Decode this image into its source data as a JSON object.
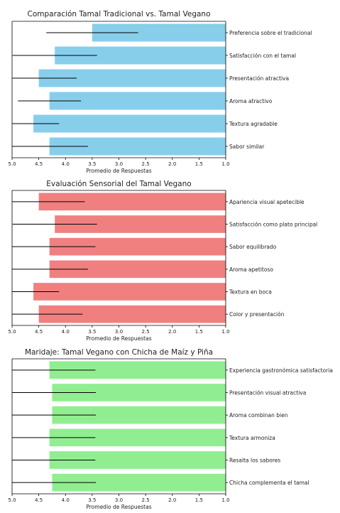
{
  "chart_data": [
    {
      "type": "bar",
      "orientation": "horizontal",
      "x_axis_inverted": true,
      "title": "Comparación Tamal Tradicional vs. Tamal Vegano",
      "xlabel": "Promedio de Respuestas",
      "xlim": [
        1.0,
        5.0
      ],
      "ticks": [
        "1.0",
        "1.5",
        "2.0",
        "2.5",
        "3.0",
        "3.5",
        "4.0",
        "4.5",
        "5.0"
      ],
      "color": "#87ceeb",
      "error_bar_color": "#000000",
      "categories": [
        "Preferencia sobre el tradicional",
        "Satisfacción con el tamal",
        "Presentación atractiva",
        "Aroma atractivo",
        "Textura agradable",
        "Sabor similar"
      ],
      "values": [
        3.5,
        4.2,
        4.5,
        4.3,
        4.6,
        4.3
      ],
      "errors": [
        0.86,
        0.79,
        0.71,
        0.59,
        0.48,
        0.72
      ]
    },
    {
      "type": "bar",
      "orientation": "horizontal",
      "x_axis_inverted": true,
      "title": "Evaluación Sensorial del Tamal Vegano",
      "xlabel": "Promedio de Respuestas",
      "xlim": [
        1.0,
        5.0
      ],
      "ticks": [
        "1.0",
        "1.5",
        "2.0",
        "2.5",
        "3.0",
        "3.5",
        "4.0",
        "4.5",
        "5.0"
      ],
      "color": "#f08080",
      "error_bar_color": "#000000",
      "categories": [
        "Apariencia visual apetecible",
        "Satisfacción como plato principal",
        "Sabor equilibrado",
        "Aroma apetitoso",
        "Textura en boca",
        "Color y presentación"
      ],
      "values": [
        4.5,
        4.2,
        4.3,
        4.3,
        4.6,
        4.5
      ],
      "errors": [
        0.86,
        0.79,
        0.86,
        0.72,
        0.48,
        0.82
      ]
    },
    {
      "type": "bar",
      "orientation": "horizontal",
      "x_axis_inverted": true,
      "title": "Maridaje: Tamal Vegano con Chicha de Maíz y Piña",
      "xlabel": "Promedio de Respuestas",
      "xlim": [
        1.0,
        5.0
      ],
      "ticks": [
        "1.0",
        "1.5",
        "2.0",
        "2.5",
        "3.0",
        "3.5",
        "4.0",
        "4.5",
        "5.0"
      ],
      "color": "#90ee90",
      "error_bar_color": "#000000",
      "categories": [
        "Experiencia gastronómica satisfactoria",
        "Presentación visual atractiva",
        "Aroma combinan bien",
        "Textura armoniza",
        "Resalta los sabores",
        "Chicha complementa el tamal"
      ],
      "values": [
        4.3,
        4.25,
        4.25,
        4.3,
        4.3,
        4.25
      ],
      "errors": [
        0.86,
        0.82,
        0.82,
        0.86,
        0.86,
        0.82
      ]
    }
  ]
}
